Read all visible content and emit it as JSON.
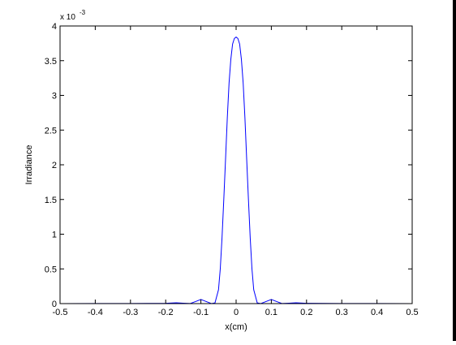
{
  "window": {
    "background": "#ffffff",
    "edge_color": "#000000"
  },
  "chart_data": {
    "type": "line",
    "title": "",
    "xlabel": "x(cm)",
    "ylabel": "Irradiance",
    "exponent_label": {
      "base": "x 10",
      "exponent": "-3"
    },
    "xlim": [
      -0.5,
      0.5
    ],
    "ylim": [
      0,
      4
    ],
    "xticks": [
      -0.5,
      -0.4,
      -0.3,
      -0.2,
      -0.1,
      0,
      0.1,
      0.2,
      0.3,
      0.4,
      0.5
    ],
    "xtick_labels": [
      "-0.5",
      "-0.4",
      "-0.3",
      "-0.2",
      "-0.1",
      "0",
      "0.1",
      "0.2",
      "0.3",
      "0.4",
      "0.5"
    ],
    "yticks": [
      0,
      0.5,
      1,
      1.5,
      2,
      2.5,
      3,
      3.5,
      4
    ],
    "ytick_labels": [
      "0",
      "0.5",
      "1",
      "1.5",
      "2",
      "2.5",
      "3",
      "3.5",
      "4"
    ],
    "grid": false,
    "legend": "none",
    "line_color": "#0000ff",
    "series": [
      {
        "x": [
          -0.5,
          -0.4,
          -0.3,
          -0.2,
          -0.17,
          -0.15,
          -0.13,
          -0.115,
          -0.1,
          -0.085,
          -0.07,
          -0.06,
          -0.05,
          -0.045,
          -0.04,
          -0.035,
          -0.03,
          -0.025,
          -0.02,
          -0.015,
          -0.01,
          -0.005,
          0,
          0.005,
          0.01,
          0.015,
          0.02,
          0.025,
          0.03,
          0.035,
          0.04,
          0.045,
          0.05,
          0.06,
          0.07,
          0.085,
          0.1,
          0.115,
          0.13,
          0.15,
          0.17,
          0.2,
          0.3,
          0.4,
          0.5
        ],
        "y": [
          0,
          0.001,
          0.002,
          0.004,
          0.012,
          0.006,
          0.002,
          0.03,
          0.06,
          0.03,
          0,
          0.01,
          0.2,
          0.5,
          0.95,
          1.5,
          2.08,
          2.68,
          3.18,
          3.52,
          3.74,
          3.82,
          3.84,
          3.82,
          3.74,
          3.52,
          3.18,
          2.68,
          2.08,
          1.5,
          0.95,
          0.5,
          0.2,
          0.01,
          0,
          0.03,
          0.06,
          0.03,
          0.002,
          0.006,
          0.012,
          0.004,
          0.002,
          0.001,
          0
        ]
      }
    ]
  }
}
